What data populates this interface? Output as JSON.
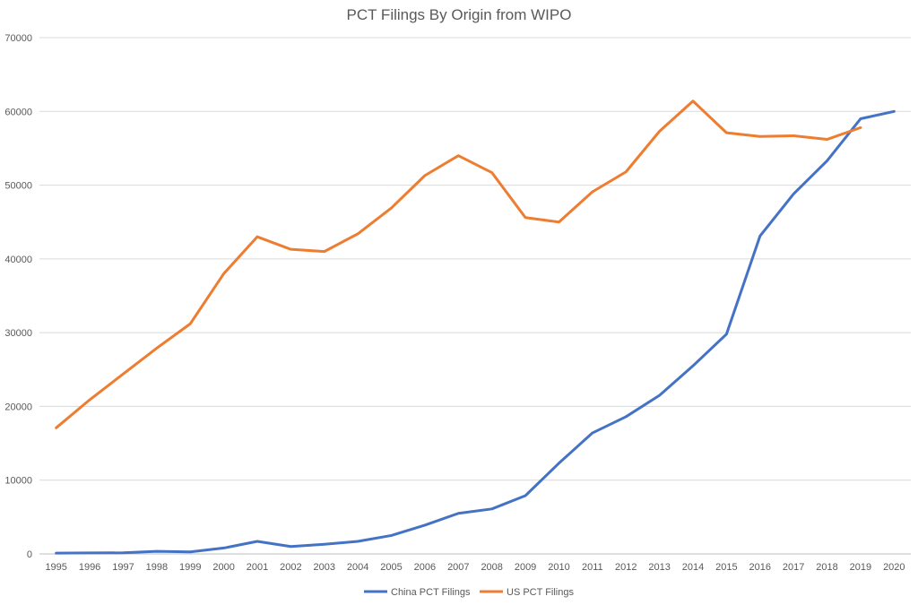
{
  "chart_data": {
    "type": "line",
    "title": "PCT Filings By Origin from WIPO",
    "xlabel": "",
    "ylabel": "",
    "categories": [
      "1995",
      "1996",
      "1997",
      "1998",
      "1999",
      "2000",
      "2001",
      "2002",
      "2003",
      "2004",
      "2005",
      "2006",
      "2007",
      "2008",
      "2009",
      "2010",
      "2011",
      "2012",
      "2013",
      "2014",
      "2015",
      "2016",
      "2017",
      "2018",
      "2019",
      "2020"
    ],
    "ylim": [
      0,
      70000
    ],
    "yticks": [
      "0",
      "10000",
      "20000",
      "30000",
      "40000",
      "50000",
      "60000",
      "70000"
    ],
    "grid": true,
    "legend": "bottom",
    "series": [
      {
        "name": "China PCT Filings",
        "color": "#4472C4",
        "values": [
          100,
          130,
          150,
          350,
          280,
          800,
          1700,
          1000,
          1300,
          1700,
          2500,
          3900,
          5500,
          6100,
          7900,
          12300,
          16400,
          18600,
          21500,
          25500,
          29800,
          43100,
          48800,
          53300,
          59000,
          60000
        ]
      },
      {
        "name": "US PCT Filings",
        "color": "#ED7D31",
        "values": [
          17100,
          20900,
          24400,
          27900,
          31200,
          38000,
          43000,
          41300,
          41000,
          43400,
          46900,
          51300,
          54000,
          51700,
          45600,
          45000,
          49100,
          51800,
          57300,
          61400,
          57100,
          56600,
          56700,
          56200,
          57800,
          null
        ]
      }
    ]
  }
}
